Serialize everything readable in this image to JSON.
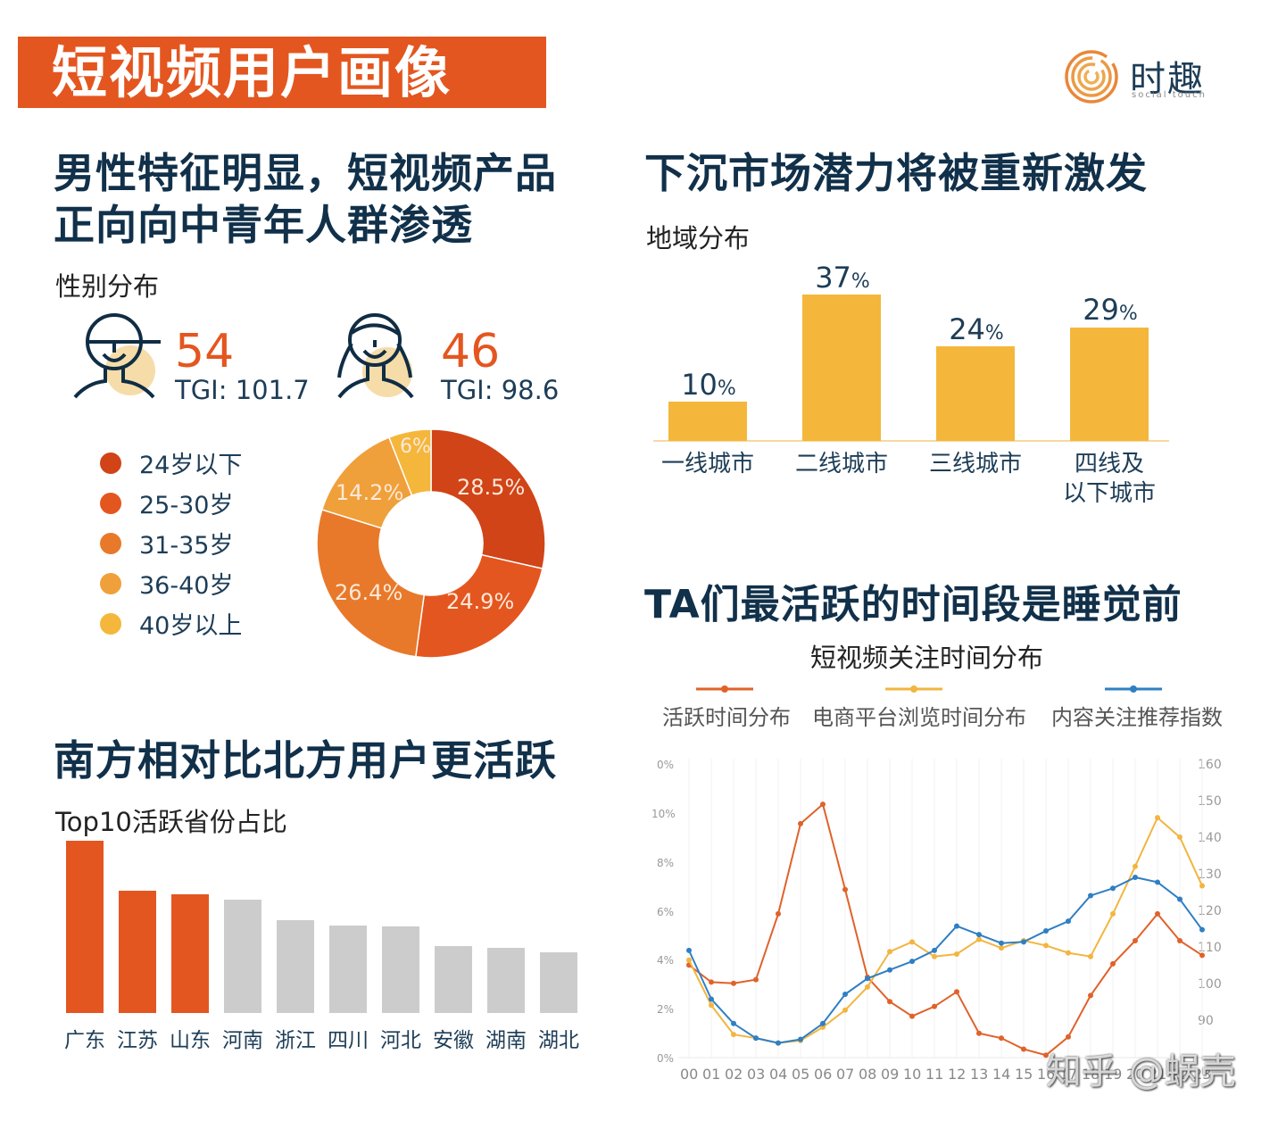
{
  "header": {
    "banner_title": "短视频用户画像",
    "logo_cn": "时趣",
    "logo_en": "social touch",
    "logo_color": "#e8873a"
  },
  "gender_section": {
    "headline_line1": "男性特征明显，短视频产品",
    "headline_line2": "正向向中青年人群渗透",
    "subtitle": "性别分布",
    "male": {
      "icon": "male-avatar-icon",
      "value": "54",
      "tgi": "TGI: 101.7"
    },
    "female": {
      "icon": "female-avatar-icon",
      "value": "46",
      "tgi": "TGI: 98.6"
    }
  },
  "age_section": {
    "legend": [
      {
        "label": "24岁以下",
        "color": "#d04418"
      },
      {
        "label": "25-30岁",
        "color": "#e4561f"
      },
      {
        "label": "31-35岁",
        "color": "#e8792a"
      },
      {
        "label": "36-40岁",
        "color": "#f0a03a"
      },
      {
        "label": "40岁以上",
        "color": "#f4b73c"
      }
    ],
    "slice_labels": [
      "28.5%",
      "24.9%",
      "26.4%",
      "14.2%",
      "6%"
    ]
  },
  "region_section": {
    "headline": "下沉市场潜力将被重新激发",
    "subtitle": "地域分布",
    "bars": [
      {
        "num": "10",
        "pct": "%",
        "label1": "一线城市",
        "label2": ""
      },
      {
        "num": "37",
        "pct": "%",
        "label1": "二线城市",
        "label2": ""
      },
      {
        "num": "24",
        "pct": "%",
        "label1": "三线城市",
        "label2": ""
      },
      {
        "num": "29",
        "pct": "%",
        "label1": "四线及",
        "label2": "以下城市"
      }
    ]
  },
  "time_section": {
    "headline": "TA们最活跃的时间段是睡觉前",
    "chart_title": "短视频关注时间分布",
    "legend": [
      {
        "label": "活跃时间分布",
        "color": "#e0622a"
      },
      {
        "label": "电商平台浏览时间分布",
        "color": "#f2b540"
      },
      {
        "label": "内容关注推荐指数",
        "color": "#2f7fc3"
      }
    ],
    "left_ticks": [
      "0%",
      "10%",
      "8%",
      "6%",
      "4%",
      "2%",
      "0%"
    ],
    "right_ticks": [
      "160",
      "150",
      "140",
      "130",
      "120",
      "110",
      "100",
      "90"
    ],
    "x_ticks": [
      "00",
      "01",
      "02",
      "03",
      "04",
      "05",
      "06",
      "07",
      "08",
      "09",
      "10",
      "11",
      "12",
      "13",
      "14",
      "15",
      "16",
      "17",
      "18",
      "19",
      "20",
      "21",
      "22",
      "23"
    ]
  },
  "province_section": {
    "headline": "南方相对比北方用户更活跃",
    "subtitle": "Top10活跃省份占比",
    "provinces": [
      "广东",
      "江苏",
      "山东",
      "河南",
      "浙江",
      "四川",
      "河北",
      "安徽",
      "湖南",
      "湖北"
    ]
  },
  "watermark": "知乎 @蜗壳",
  "chart_data": [
    {
      "type": "pie",
      "title": "年龄分布",
      "categories": [
        "24岁以下",
        "25-30岁",
        "31-35岁",
        "36-40岁",
        "40岁以上"
      ],
      "values": [
        28.5,
        24.9,
        26.4,
        14.2,
        6
      ],
      "colors": [
        "#d04418",
        "#e4561f",
        "#e8792a",
        "#f0a03a",
        "#f4b73c"
      ],
      "donut": true,
      "legend_position": "left"
    },
    {
      "type": "bar",
      "title": "地域分布",
      "categories": [
        "一线城市",
        "二线城市",
        "三线城市",
        "四线及以下城市"
      ],
      "values": [
        10,
        37,
        24,
        29
      ],
      "unit": "%",
      "color": "#f4b73c"
    },
    {
      "type": "bar",
      "title": "Top10活跃省份占比",
      "categories": [
        "广东",
        "江苏",
        "山东",
        "河南",
        "浙江",
        "四川",
        "河北",
        "安徽",
        "湖南",
        "湖北"
      ],
      "values": [
        100,
        71,
        69,
        66,
        54,
        51,
        50,
        39,
        38,
        35
      ],
      "note": "relative bar heights (no axis shown); top 3 highlighted",
      "colors": [
        "#e4561f",
        "#e4561f",
        "#e4561f",
        "#cccccc",
        "#cccccc",
        "#cccccc",
        "#cccccc",
        "#cccccc",
        "#cccccc",
        "#cccccc"
      ]
    },
    {
      "type": "line",
      "title": "短视频关注时间分布",
      "x": [
        "00",
        "01",
        "02",
        "03",
        "04",
        "05",
        "06",
        "07",
        "08",
        "09",
        "10",
        "11",
        "12",
        "13",
        "14",
        "15",
        "16",
        "17",
        "18",
        "19",
        "20",
        "21",
        "22",
        "23"
      ],
      "series": [
        {
          "name": "活跃时间分布",
          "axis": "left",
          "values": [
            3.8,
            3.1,
            3.05,
            3.2,
            5.9,
            9.6,
            10.4,
            6.9,
            3.3,
            2.3,
            1.7,
            2.1,
            2.7,
            1.0,
            0.8,
            0.35,
            0.1,
            0.85,
            2.55,
            3.85,
            4.8,
            5.9,
            4.8,
            4.2
          ]
        },
        {
          "name": "电商平台浏览时间分布",
          "axis": "left",
          "values": [
            4.0,
            2.15,
            0.95,
            0.8,
            0.6,
            0.7,
            1.25,
            1.95,
            2.9,
            4.35,
            4.75,
            4.15,
            4.25,
            4.85,
            4.5,
            4.8,
            4.6,
            4.3,
            4.15,
            5.9,
            7.85,
            9.85,
            9.05,
            7.05
          ]
        },
        {
          "name": "内容关注推荐指数",
          "axis": "left-scaled",
          "values": [
            4.4,
            2.4,
            1.4,
            0.8,
            0.6,
            0.75,
            1.4,
            2.6,
            3.25,
            3.6,
            3.95,
            4.4,
            5.4,
            5.05,
            4.7,
            4.75,
            5.2,
            5.6,
            6.65,
            6.95,
            7.4,
            7.2,
            6.5,
            5.25
          ]
        }
      ],
      "ylabel_left_ticks": [
        "0%",
        "2%",
        "4%",
        "6%",
        "8%",
        "10%",
        "0%"
      ],
      "ylabel_right_ticks": [
        "90",
        "100",
        "110",
        "120",
        "130",
        "140",
        "150",
        "160"
      ],
      "ylim_left": [
        0,
        12
      ],
      "ylim_right": [
        80,
        160
      ],
      "grid": "vertical",
      "legend_position": "top"
    }
  ]
}
